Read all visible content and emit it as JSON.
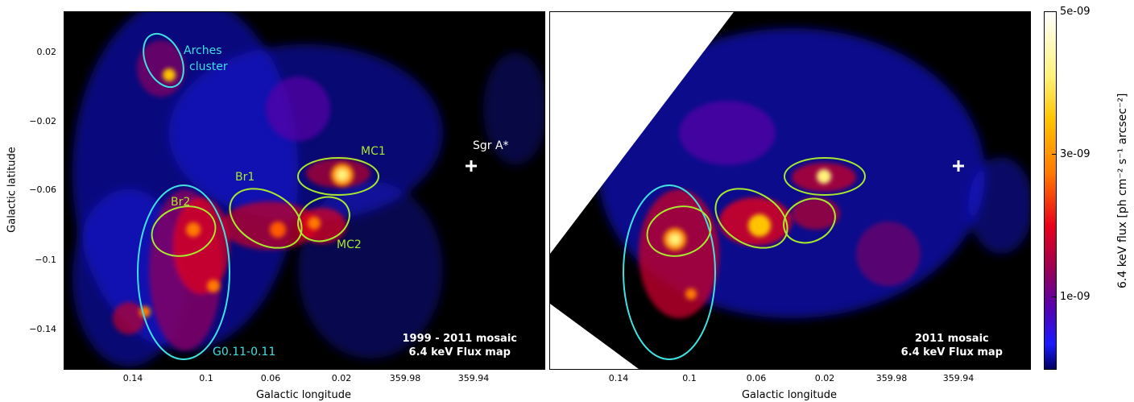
{
  "left_panel": {
    "labels": {
      "arches1": "Arches",
      "arches2": "cluster",
      "sgra": "Sgr A*",
      "mc1": "MC1",
      "br1": "Br1",
      "br2": "Br2",
      "mc2": "MC2",
      "g011": "G0.11-0.11"
    },
    "mosaic_line1": "1999 - 2011 mosaic",
    "mosaic_line2": "6.4 keV Flux map"
  },
  "right_panel": {
    "mosaic_line1": "2011 mosaic",
    "mosaic_line2": "6.4 keV Flux map"
  },
  "axes": {
    "ylabel": "Galactic latitude",
    "xlabel": "Galactic longitude",
    "yticks": [
      "0.02",
      "−0.02",
      "−0.06",
      "−0.1",
      "−0.14"
    ],
    "xticks": [
      "0.14",
      "0.1",
      "0.06",
      "0.02",
      "359.98",
      "359.94"
    ]
  },
  "colorbar": {
    "label": "6.4 keV flux [ph cm⁻² s⁻¹ arcsec⁻²]",
    "ticks": [
      "5e-09",
      "3e-09",
      "1e-09"
    ],
    "tick_values": [
      5e-09,
      3e-09,
      1e-09
    ],
    "max": 5e-09
  },
  "colors": {
    "cyan": "#40e0e0",
    "green": "#a8e830",
    "white": "#ffffff"
  }
}
